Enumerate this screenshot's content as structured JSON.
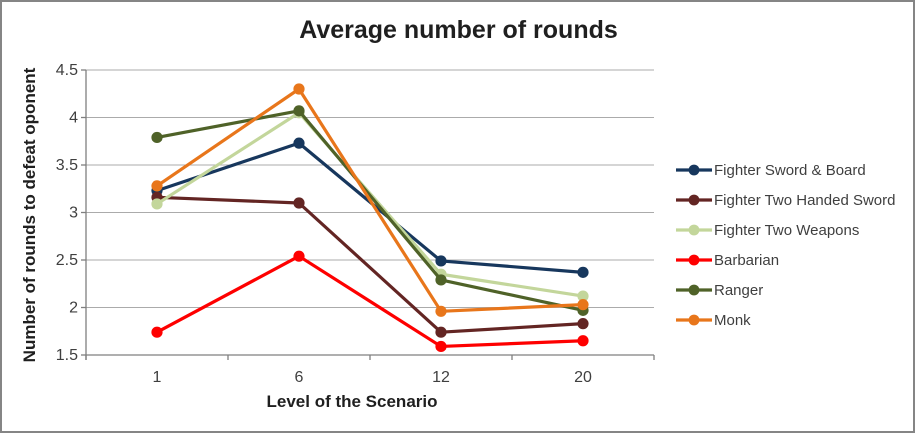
{
  "window": {
    "background": "#ffffff",
    "frame_border_color": "#858585"
  },
  "chart_data": {
    "type": "line",
    "title": "Average number of rounds",
    "xlabel": "Level of the Scenario",
    "ylabel": "Number of rounds to defeat oponent",
    "categories": [
      "1",
      "6",
      "12",
      "20"
    ],
    "ylim": [
      1.5,
      4.5
    ],
    "ytick_step": 0.5,
    "ytick_labels": [
      "1.5",
      "2",
      "2.5",
      "3",
      "3.5",
      "4",
      "4.5"
    ],
    "grid": true,
    "legend_position": "right",
    "gridline_color": "#ababab",
    "axis_line_color": "#7f7f7f",
    "tick_label_color": "#3f3f3f",
    "series": [
      {
        "name": "Fighter Sword & Board",
        "color": "#17375D",
        "values": [
          3.23,
          3.73,
          2.49,
          2.37
        ]
      },
      {
        "name": "Fighter Two Handed Sword",
        "color": "#632523",
        "values": [
          3.16,
          3.1,
          1.74,
          1.83
        ]
      },
      {
        "name": "Fighter Two Weapons",
        "color": "#C3D69B",
        "values": [
          3.09,
          4.05,
          2.35,
          2.12
        ]
      },
      {
        "name": "Barbarian",
        "color": "#FE0000",
        "values": [
          1.74,
          2.54,
          1.59,
          1.65
        ]
      },
      {
        "name": "Ranger",
        "color": "#4F6228",
        "values": [
          3.79,
          4.07,
          2.29,
          1.97
        ]
      },
      {
        "name": "Monk",
        "color": "#E8761B",
        "values": [
          3.28,
          4.3,
          1.96,
          2.03
        ]
      }
    ]
  }
}
